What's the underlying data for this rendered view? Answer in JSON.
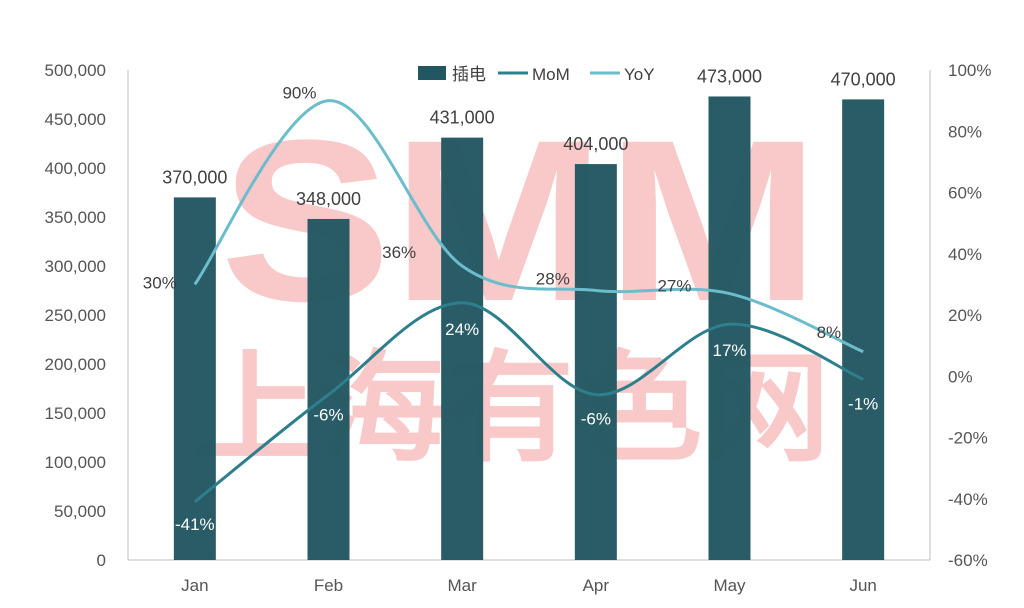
{
  "chart_data": {
    "type": "bar",
    "categories": [
      "Jan",
      "Feb",
      "Mar",
      "Apr",
      "May",
      "Jun"
    ],
    "series": [
      {
        "name": "插电",
        "type": "bar",
        "axis": "left",
        "color": "#225761",
        "values": [
          370000,
          348000,
          431000,
          404000,
          473000,
          470000
        ],
        "labels": [
          "370,000",
          "348,000",
          "431,000",
          "404,000",
          "473,000",
          "470,000"
        ]
      },
      {
        "name": "MoM",
        "type": "line",
        "axis": "right",
        "color": "#2e7f8c",
        "values": [
          -41,
          -6,
          24,
          -6,
          17,
          -1
        ],
        "labels": [
          "-41%",
          "-6%",
          "24%",
          "-6%",
          "17%",
          "-1%"
        ]
      },
      {
        "name": "YoY",
        "type": "line",
        "axis": "right",
        "color": "#6bbccc",
        "values": [
          30,
          90,
          36,
          28,
          27,
          8
        ],
        "labels": [
          "30%",
          "90%",
          "36%",
          "28%",
          "27%",
          "8%"
        ]
      }
    ],
    "left_axis": {
      "ylim": [
        0,
        500000
      ],
      "ticks": [
        "0",
        "50,000",
        "100,000",
        "150,000",
        "200,000",
        "250,000",
        "300,000",
        "350,000",
        "400,000",
        "450,000",
        "500,000"
      ]
    },
    "right_axis": {
      "ylim": [
        -60,
        100
      ],
      "ticks": [
        "-60%",
        "-40%",
        "-20%",
        "0%",
        "20%",
        "40%",
        "60%",
        "80%",
        "100%"
      ]
    },
    "legend_position": "top",
    "grid": false
  },
  "watermark": {
    "logo_text": "SMM",
    "cn_text": "上海有色网",
    "color": "#f7b2b2"
  }
}
